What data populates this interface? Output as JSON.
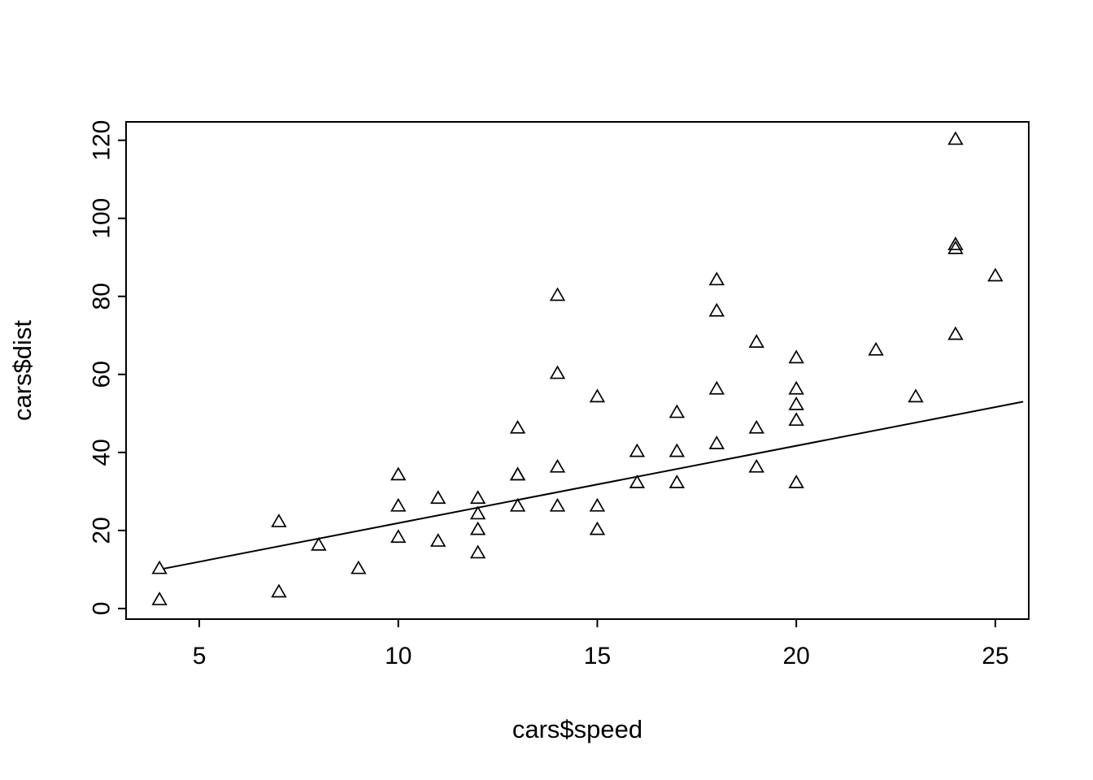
{
  "chart_data": {
    "type": "scatter",
    "title": "",
    "xlabel": "cars$speed",
    "ylabel": "cars$dist",
    "marker": "open-triangle",
    "grid": false,
    "legend": "none",
    "x_ticks": [
      5,
      10,
      15,
      20,
      25
    ],
    "y_ticks": [
      0,
      20,
      40,
      60,
      80,
      100,
      120
    ],
    "xlim": [
      3.16,
      25.84
    ],
    "ylim": [
      -2.72,
      124.72
    ],
    "points": [
      [
        4,
        2
      ],
      [
        4,
        10
      ],
      [
        7,
        4
      ],
      [
        7,
        22
      ],
      [
        8,
        16
      ],
      [
        9,
        10
      ],
      [
        10,
        18
      ],
      [
        10,
        26
      ],
      [
        10,
        34
      ],
      [
        11,
        17
      ],
      [
        11,
        28
      ],
      [
        12,
        14
      ],
      [
        12,
        20
      ],
      [
        12,
        24
      ],
      [
        12,
        28
      ],
      [
        13,
        26
      ],
      [
        13,
        34
      ],
      [
        13,
        34
      ],
      [
        13,
        46
      ],
      [
        14,
        26
      ],
      [
        14,
        36
      ],
      [
        14,
        60
      ],
      [
        14,
        80
      ],
      [
        15,
        20
      ],
      [
        15,
        26
      ],
      [
        15,
        54
      ],
      [
        16,
        32
      ],
      [
        16,
        40
      ],
      [
        17,
        32
      ],
      [
        17,
        40
      ],
      [
        17,
        50
      ],
      [
        18,
        42
      ],
      [
        18,
        56
      ],
      [
        18,
        76
      ],
      [
        18,
        84
      ],
      [
        19,
        36
      ],
      [
        19,
        46
      ],
      [
        19,
        68
      ],
      [
        20,
        32
      ],
      [
        20,
        48
      ],
      [
        20,
        52
      ],
      [
        20,
        56
      ],
      [
        20,
        64
      ],
      [
        22,
        66
      ],
      [
        23,
        54
      ],
      [
        24,
        70
      ],
      [
        24,
        92
      ],
      [
        24,
        93
      ],
      [
        24,
        120
      ],
      [
        25,
        85
      ]
    ],
    "fit_line": {
      "x": [
        4.1,
        25.7
      ],
      "y": [
        10.2,
        53.0
      ]
    }
  },
  "colors": {
    "background": "#ffffff",
    "foreground": "#000000"
  }
}
